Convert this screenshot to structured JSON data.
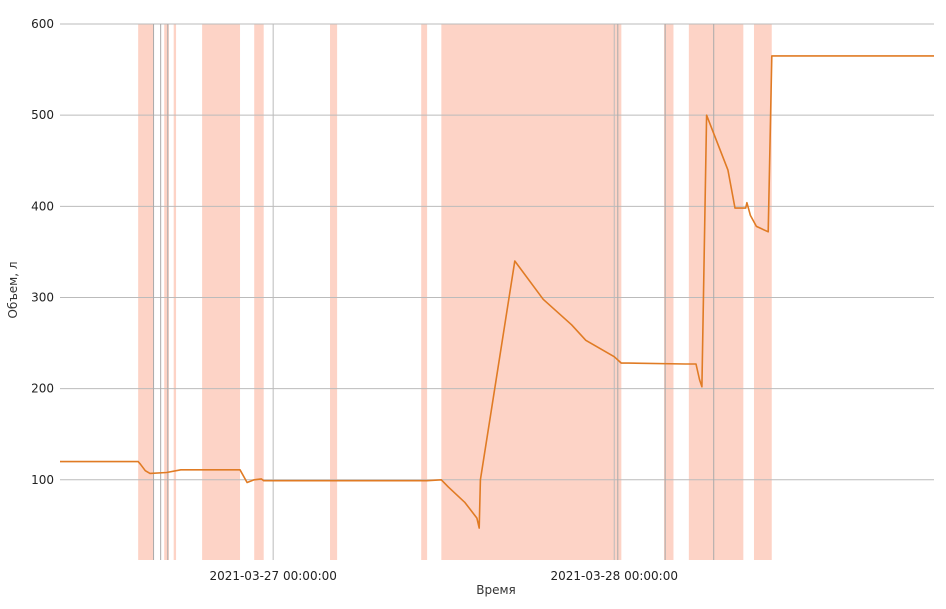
{
  "chart_data": {
    "type": "line",
    "title": "",
    "xlabel": "Время",
    "ylabel": "Объем, л",
    "x_unit": "datetime",
    "xlim": [
      "2021-03-26 09:00",
      "2021-03-28 22:30"
    ],
    "ylim": [
      12,
      600
    ],
    "y_ticks": [
      100,
      200,
      300,
      400,
      500,
      600
    ],
    "x_ticks": [
      {
        "value": "2021-03-27 00:00",
        "label": "2021-03-27 00:00:00"
      },
      {
        "value": "2021-03-28 00:00",
        "label": "2021-03-28 00:00:00"
      }
    ],
    "grid": true,
    "legend": "none",
    "colors": {
      "line": "#e07b24",
      "band": "#fdd3c6",
      "grid": "#bbbbbb"
    },
    "highlight_bands": [
      [
        "2021-03-26 14:30",
        "2021-03-26 15:35"
      ],
      [
        "2021-03-26 16:20",
        "2021-03-26 16:40"
      ],
      [
        "2021-03-26 17:00",
        "2021-03-26 17:10"
      ],
      [
        "2021-03-26 19:00",
        "2021-03-26 21:40"
      ],
      [
        "2021-03-26 22:40",
        "2021-03-26 23:20"
      ],
      [
        "2021-03-27 04:00",
        "2021-03-27 04:30"
      ],
      [
        "2021-03-27 10:25",
        "2021-03-27 10:50"
      ],
      [
        "2021-03-27 11:50",
        "2021-03-28 00:30"
      ],
      [
        "2021-03-28 03:30",
        "2021-03-28 04:10"
      ],
      [
        "2021-03-28 05:15",
        "2021-03-28 09:05"
      ],
      [
        "2021-03-28 09:50",
        "2021-03-28 11:05"
      ]
    ],
    "extra_vertical_lines": [
      "2021-03-26 15:35",
      "2021-03-26 16:05",
      "2021-03-26 16:35",
      "2021-03-28 00:15",
      "2021-03-28 03:35",
      "2021-03-28 07:00"
    ],
    "series": [
      {
        "x": [
          "2021-03-26 09:00",
          "2021-03-26 14:30",
          "2021-03-26 14:40",
          "2021-03-26 15:00",
          "2021-03-26 15:20",
          "2021-03-26 16:30",
          "2021-03-26 17:30",
          "2021-03-26 21:40",
          "2021-03-26 22:10",
          "2021-03-26 22:40",
          "2021-03-26 23:10",
          "2021-03-26 23:20",
          "2021-03-27 10:50",
          "2021-03-27 11:50",
          "2021-03-27 12:20",
          "2021-03-27 13:30",
          "2021-03-27 14:20",
          "2021-03-27 14:30",
          "2021-03-27 14:35",
          "2021-03-27 17:00",
          "2021-03-27 19:00",
          "2021-03-27 21:00",
          "2021-03-27 22:00",
          "2021-03-28 00:00",
          "2021-03-28 00:30",
          "2021-03-28 01:00",
          "2021-03-28 05:00",
          "2021-03-28 05:45",
          "2021-03-28 06:00",
          "2021-03-28 06:10",
          "2021-03-28 06:30",
          "2021-03-28 07:00",
          "2021-03-28 08:00",
          "2021-03-28 08:30",
          "2021-03-28 09:15",
          "2021-03-28 09:20",
          "2021-03-28 09:35",
          "2021-03-28 10:00",
          "2021-03-28 10:50",
          "2021-03-28 11:00",
          "2021-03-28 11:05",
          "2021-03-28 15:00",
          "2021-03-28 22:30"
        ],
        "y": [
          120,
          120,
          117,
          110,
          107,
          108,
          111,
          111,
          97,
          100,
          101,
          99,
          99,
          100,
          92,
          75,
          58,
          47,
          100,
          340,
          298,
          270,
          253,
          235,
          228,
          228,
          227,
          227,
          210,
          202,
          500,
          480,
          440,
          398,
          398,
          404,
          390,
          378,
          372,
          500,
          565,
          565,
          565
        ]
      }
    ]
  }
}
